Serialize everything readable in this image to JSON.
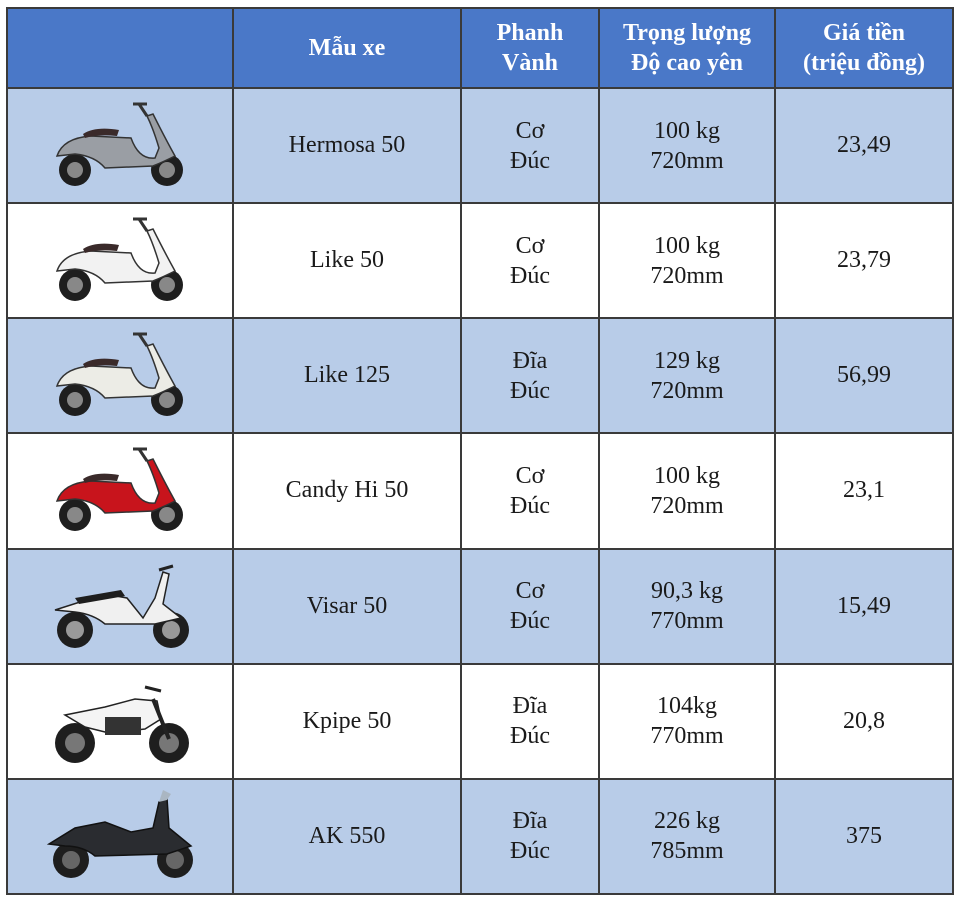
{
  "header": {
    "model": "Mẫu xe",
    "brake_line1": "Phanh",
    "brake_line2": "Vành",
    "weight_line1": "Trọng lượng",
    "weight_line2": "Độ cao yên",
    "price_line1": "Giá tiền",
    "price_line2": "(triệu đồng)"
  },
  "rows": [
    {
      "name": "Hermosa 50",
      "brake": "Cơ",
      "wheel": "Đúc",
      "weight": "100 kg",
      "seat": "720mm",
      "price": "23,49",
      "bike_color": "#9a9ea4",
      "bike_icon": "scooter-icon"
    },
    {
      "name": "Like 50",
      "brake": "Cơ",
      "wheel": "Đúc",
      "weight": "100 kg",
      "seat": "720mm",
      "price": "23,79",
      "bike_color": "#f2f2f2",
      "bike_icon": "scooter-icon"
    },
    {
      "name": "Like 125",
      "brake": "Đĩa",
      "wheel": "Đúc",
      "weight": "129 kg",
      "seat": "720mm",
      "price": "56,99",
      "bike_color": "#ecece6",
      "bike_icon": "scooter-icon"
    },
    {
      "name": "Candy Hi 50",
      "brake": "Cơ",
      "wheel": "Đúc",
      "weight": "100 kg",
      "seat": "720mm",
      "price": "23,1",
      "bike_color": "#c8141c",
      "bike_icon": "scooter-icon"
    },
    {
      "name": "Visar 50",
      "brake": "Cơ",
      "wheel": "Đúc",
      "weight": "90,3 kg",
      "seat": "770mm",
      "price": "15,49",
      "bike_color": "#f0f0f0",
      "bike_icon": "underbone-icon"
    },
    {
      "name": "Kpipe 50",
      "brake": "Đĩa",
      "wheel": "Đúc",
      "weight": "104kg",
      "seat": "770mm",
      "price": "20,8",
      "bike_color": "#f4f4f4",
      "bike_icon": "naked-bike-icon"
    },
    {
      "name": "AK 550",
      "brake": "Đĩa",
      "wheel": "Đúc",
      "weight": "226 kg",
      "seat": "785mm",
      "price": "375",
      "bike_color": "#2a2c30",
      "bike_icon": "maxi-scooter-icon"
    }
  ]
}
